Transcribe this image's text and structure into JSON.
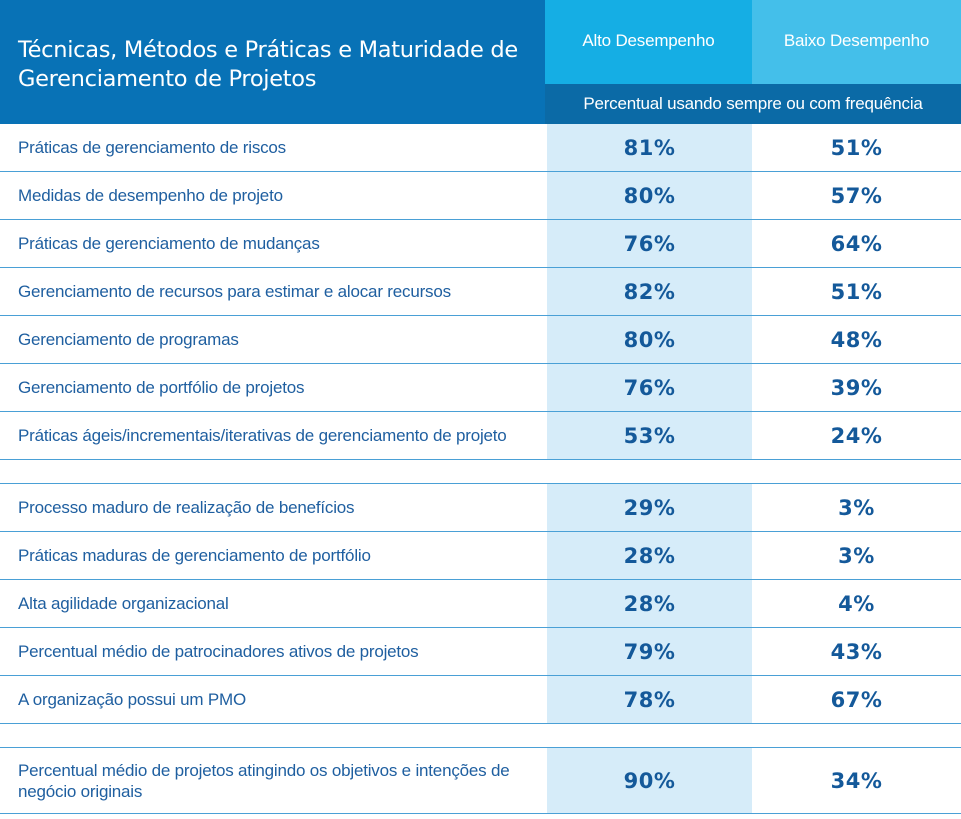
{
  "header": {
    "title": "Técnicas, Métodos e Práticas e Maturidade de Gerenciamento de Projetos",
    "col_alto": "Alto Desempenho",
    "col_baixo": "Baixo Desempenho",
    "subheader": "Percentual usando sempre ou com frequência"
  },
  "groups": [
    {
      "rows": [
        {
          "label": "Práticas de gerenciamento de riscos",
          "alto": "81%",
          "baixo": "51%"
        },
        {
          "label": "Medidas de desempenho de projeto",
          "alto": "80%",
          "baixo": "57%"
        },
        {
          "label": "Práticas de gerenciamento de mudanças",
          "alto": "76%",
          "baixo": "64%"
        },
        {
          "label": "Gerenciamento de recursos para estimar e alocar recursos",
          "alto": "82%",
          "baixo": "51%"
        },
        {
          "label": "Gerenciamento de programas",
          "alto": "80%",
          "baixo": "48%"
        },
        {
          "label": "Gerenciamento de portfólio de projetos",
          "alto": "76%",
          "baixo": "39%"
        },
        {
          "label": "Práticas ágeis/incrementais/iterativas de gerenciamento de projeto",
          "alto": "53%",
          "baixo": "24%"
        }
      ]
    },
    {
      "rows": [
        {
          "label": "Processo maduro de realização de benefícios",
          "alto": "29%",
          "baixo": "3%"
        },
        {
          "label": "Práticas maduras de gerenciamento de portfólio",
          "alto": "28%",
          "baixo": "3%"
        },
        {
          "label": "Alta agilidade organizacional",
          "alto": "28%",
          "baixo": "4%"
        },
        {
          "label": "Percentual médio de patrocinadores ativos de projetos",
          "alto": "79%",
          "baixo": "43%"
        },
        {
          "label": "A organização possui um PMO",
          "alto": "78%",
          "baixo": "67%"
        }
      ]
    },
    {
      "rows": [
        {
          "label": "Percentual médio de projetos atingindo os objetivos e intenções de negócio originais",
          "alto": "90%",
          "baixo": "34%"
        }
      ]
    }
  ]
}
